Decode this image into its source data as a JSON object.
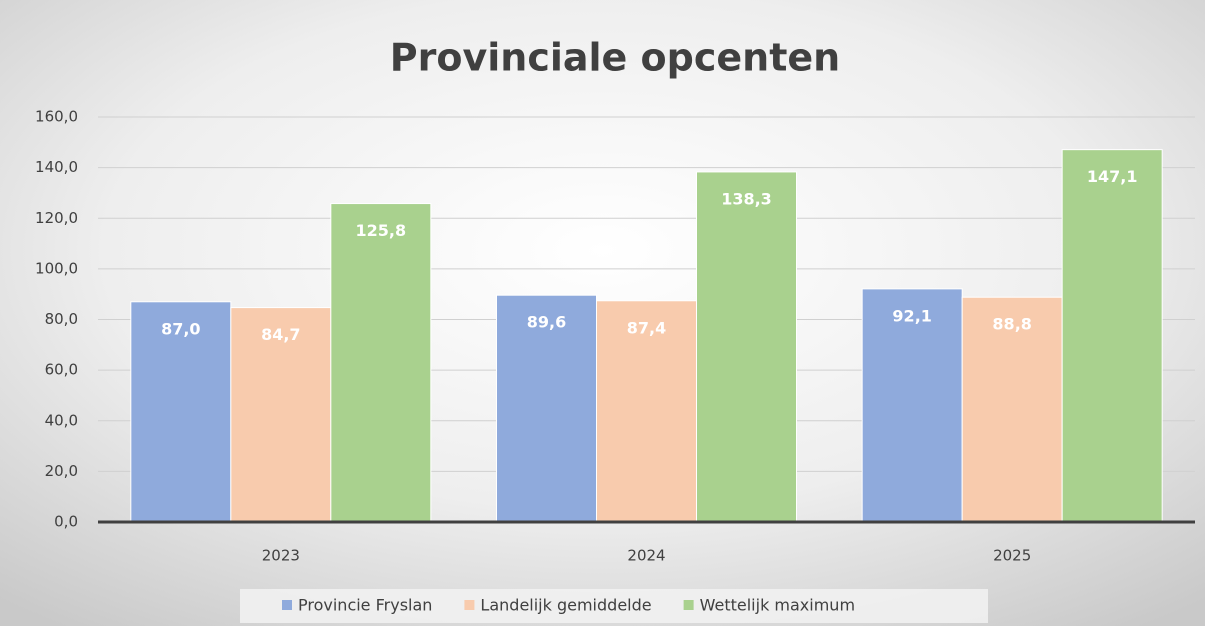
{
  "chart_data": {
    "type": "bar",
    "title": "Provinciale opcenten",
    "categories": [
      "2023",
      "2024",
      "2025"
    ],
    "series": [
      {
        "name": "Provincie Fryslan",
        "color": "#8faadc",
        "values": [
          87.0,
          89.6,
          92.1
        ],
        "value_labels": [
          "87,0",
          "89,6",
          "92,1"
        ]
      },
      {
        "name": "Landelijk gemiddelde",
        "color": "#f8cbad",
        "values": [
          84.7,
          87.4,
          88.8
        ],
        "value_labels": [
          "84,7",
          "87,4",
          "88,8"
        ]
      },
      {
        "name": "Wettelijk maximum",
        "color": "#a9d18e",
        "values": [
          125.8,
          138.3,
          147.1
        ],
        "value_labels": [
          "125,8",
          "138,3",
          "147,1"
        ]
      }
    ],
    "ylim": [
      0,
      160
    ],
    "yticks": [
      {
        "value": 0,
        "label": "0,0"
      },
      {
        "value": 20,
        "label": "20,0"
      },
      {
        "value": 40,
        "label": "40,0"
      },
      {
        "value": 60,
        "label": "60,0"
      },
      {
        "value": 80,
        "label": "80,0"
      },
      {
        "value": 100,
        "label": "100,0"
      },
      {
        "value": 120,
        "label": "120,0"
      },
      {
        "value": 140,
        "label": "140,0"
      },
      {
        "value": 160,
        "label": "160,0"
      }
    ],
    "grid": true,
    "legend": "bottom"
  }
}
